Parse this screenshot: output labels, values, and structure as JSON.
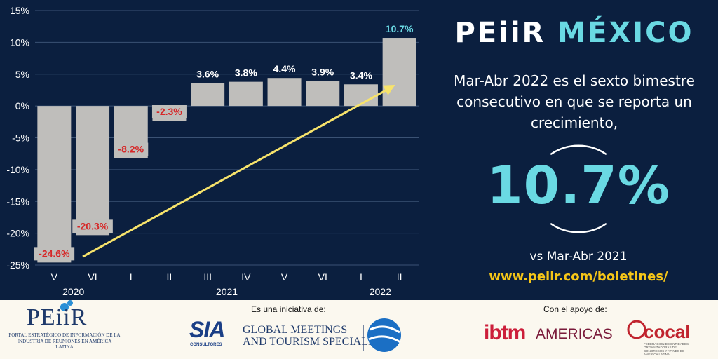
{
  "headline": {
    "part1": "PEiiR ",
    "part2": "MÉXICO"
  },
  "description": "Mar-Abr 2022 es el sexto bimestre consecutivo en que se reporta un crecimiento,",
  "highlight_value": "10.7%",
  "comparison": "vs Mar-Abr 2021",
  "url": "www.peiir.com/boletines/",
  "colors": {
    "background": "#0b1f3f",
    "bar": "#bfbebb",
    "negative_label": "#d62828",
    "positive_label": "#ffffff",
    "accent": "#6ad9e3",
    "arrow": "#f7e36b",
    "url": "#f5c518"
  },
  "chart_data": {
    "type": "bar",
    "categories": [
      "V",
      "VI",
      "I",
      "II",
      "III",
      "IV",
      "V",
      "VI",
      "I",
      "II"
    ],
    "year_labels": [
      {
        "label": "2020",
        "categories": [
          0,
          1
        ]
      },
      {
        "label": "2021",
        "categories": [
          2,
          7
        ]
      },
      {
        "label": "2022",
        "categories": [
          8,
          9
        ]
      }
    ],
    "values": [
      -24.6,
      -20.3,
      -8.2,
      -2.3,
      3.6,
      3.8,
      4.4,
      3.9,
      3.4,
      10.7
    ],
    "data_labels": [
      "-24.6%",
      "-20.3%",
      "-8.2%",
      "-2.3%",
      "3.6%",
      "3.8%",
      "4.4%",
      "3.9%",
      "3.4%",
      "10.7%"
    ],
    "yticks": [
      "15%",
      "10%",
      "5%",
      "0%",
      "-5%",
      "-10%",
      "-15%",
      "-20%",
      "-25%"
    ],
    "ytick_values": [
      15,
      10,
      5,
      0,
      -5,
      -10,
      -15,
      -20,
      -25
    ],
    "ylim": [
      -25,
      15
    ],
    "grid": true,
    "trend_arrow": {
      "from_category": 1,
      "to_category": 9,
      "color": "yellow"
    }
  },
  "footer": {
    "peiir_logo_text": "PEiiR",
    "peiir_subtitle": "PORTAL ESTRATÉGICO DE INFORMACIÓN DE LA INDUSTRIA DE REUNIONES EN AMÉRICA LATINA",
    "initiative_caption": "Es una iniciativa de:",
    "sia_logo_text": "SIA",
    "sia_sub": "CONSULTORES",
    "gm_line1": "GLOBAL MEETINGS",
    "gm_line2": "AND TOURISM SPECIALISTS",
    "support_caption": "Con el apoyo de:",
    "ibtm_text": "ibtm",
    "americas_text": "AMERICAS",
    "cocal_text": "cocal",
    "cocal_sub": "FEDERACIÓN DE ENTIDADES ORGANIZADORAS DE CONGRESOS Y AFINES DE AMÉRICA LATINA"
  }
}
